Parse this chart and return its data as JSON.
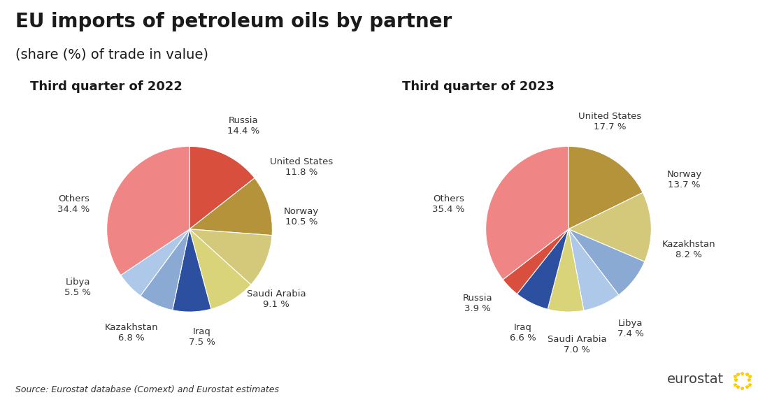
{
  "title": "EU imports of petroleum oils by partner",
  "subtitle": "(share (%) of trade in value)",
  "chart1_title": "Third quarter of 2022",
  "chart2_title": "Third quarter of 2023",
  "source": "Source: Eurostat database (Comext) and Eurostat estimates",
  "chart1": {
    "labels": [
      "Russia",
      "United States",
      "Norway",
      "Saudi Arabia",
      "Iraq",
      "Kazakhstan",
      "Libya",
      "Others"
    ],
    "values": [
      14.4,
      11.8,
      10.5,
      9.1,
      7.5,
      6.8,
      5.5,
      34.4
    ],
    "colors": [
      "#d94f3d",
      "#b5933a",
      "#d4c87a",
      "#d4c87a",
      "#3c58a8",
      "#7a9fd4",
      "#a8c4e8",
      "#f08080"
    ],
    "label_colors": [
      "#333333",
      "#333333",
      "#333333",
      "#333333",
      "#333333",
      "#333333",
      "#333333",
      "#333333"
    ]
  },
  "chart2": {
    "labels": [
      "United States",
      "Norway",
      "Kazakhstan",
      "Libya",
      "Saudi Arabia",
      "Iraq",
      "Russia",
      "Others"
    ],
    "values": [
      17.7,
      13.7,
      8.2,
      7.4,
      7.0,
      6.6,
      3.9,
      35.4
    ],
    "colors": [
      "#b5933a",
      "#d4c87a",
      "#7a9fd4",
      "#a8c4e8",
      "#d4c87a",
      "#3c58a8",
      "#d94f3d",
      "#f08080"
    ],
    "label_colors": [
      "#333333",
      "#333333",
      "#333333",
      "#333333",
      "#333333",
      "#333333",
      "#333333",
      "#333333"
    ]
  },
  "bg_color": "#ffffff",
  "title_fontsize": 20,
  "subtitle_fontsize": 14,
  "chart_title_fontsize": 13,
  "label_fontsize": 9.5,
  "source_fontsize": 9
}
